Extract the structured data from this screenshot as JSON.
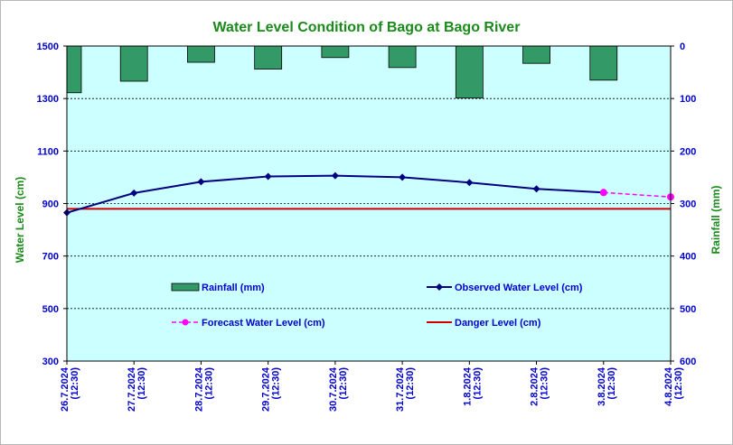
{
  "chart_data": {
    "type": "bar+line",
    "title": "Water Level Condition of Bago at Bago River",
    "y_left_label": "Water Level (cm)",
    "y_right_label": "Rainfall (mm)",
    "y_left_range": [
      300,
      1500
    ],
    "y_left_ticks": [
      "300",
      "500",
      "700",
      "900",
      "1100",
      "1300",
      "1500"
    ],
    "y_right_range_inverted": [
      0,
      600
    ],
    "y_right_ticks": [
      "0",
      "100",
      "200",
      "300",
      "400",
      "500",
      "600"
    ],
    "categories": [
      [
        "26.7.2024",
        "(12:30)"
      ],
      [
        "27.7.2024",
        "(12:30)"
      ],
      [
        "28.7.2024",
        "(12:30)"
      ],
      [
        "29.7.2024",
        "(12:30)"
      ],
      [
        "30.7.2024",
        "(12:30)"
      ],
      [
        "31.7.2024",
        "(12:30)"
      ],
      [
        "1.8.2024",
        "(12:30)"
      ],
      [
        "2.8.2024",
        "(12:30)"
      ],
      [
        "3.8.2024",
        "(12:30)"
      ],
      [
        "4.8.2024",
        "(12:30)"
      ]
    ],
    "rainfall_mm": [
      89,
      67,
      31,
      44,
      22,
      41,
      99,
      33,
      65
    ],
    "observed_water_level_cm": [
      865,
      940,
      983,
      1003,
      1006,
      1000,
      980,
      956,
      942
    ],
    "forecast_water_level_cm": [
      942,
      925
    ],
    "danger_level_cm": 880,
    "legend": {
      "rainfall": "Rainfall (mm)",
      "observed": "Observed Water Level (cm)",
      "forecast": "Forecast Water Level (cm)",
      "danger": "Danger Level (cm)"
    },
    "colors": {
      "plot_bg": "#ccffff",
      "rain_bar": "#339966",
      "observed": "#000080",
      "forecast": "#ff00ff",
      "danger": "#cc0000",
      "axis_text": "#0000cc",
      "label_green": "#1a8a1a"
    }
  }
}
